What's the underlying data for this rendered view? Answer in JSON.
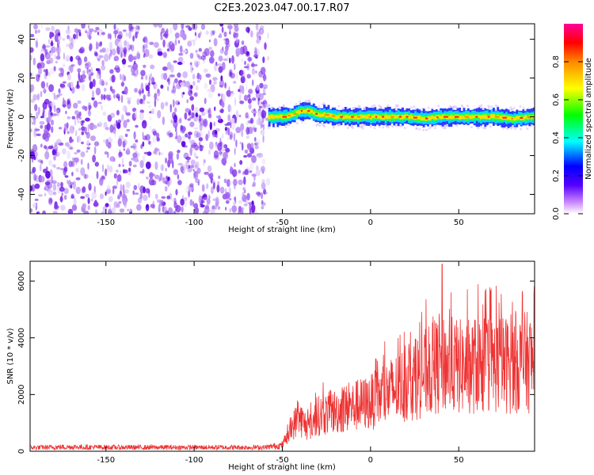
{
  "title": "C2E3.2023.047.00.17.R07",
  "colors": {
    "snr_line": "#ee3333",
    "noise": "#7a2be6",
    "axis": "#000000"
  },
  "chart_data": [
    {
      "type": "heatmap",
      "xlabel": "Height of straight line (km)",
      "ylabel": "Frequency (Hz)",
      "xlim": [
        -193,
        93
      ],
      "ylim": [
        -50,
        48
      ],
      "x_ticks": [
        -150,
        -100,
        -50,
        0,
        50
      ],
      "y_ticks": [
        -40,
        -20,
        0,
        20,
        40
      ],
      "grid": false,
      "signal_onset_km": -58,
      "signal_trace": {
        "x": [
          -58,
          -50,
          -45,
          -40,
          -35,
          -30,
          -25,
          -20,
          -10,
          0,
          10,
          20,
          30,
          40,
          50,
          60,
          70,
          80,
          92
        ],
        "frequency": [
          0,
          0,
          1,
          3,
          3,
          1,
          1,
          0,
          0,
          0,
          0,
          0,
          -1,
          0,
          0,
          0,
          0,
          -1,
          0
        ]
      },
      "colorbar": {
        "label": "Normalized spectral amplitude",
        "range": [
          0,
          1
        ],
        "ticks": [
          0.0,
          0.2,
          0.4,
          0.6,
          0.8
        ]
      }
    },
    {
      "type": "line",
      "xlabel": "Height of straight line (km)",
      "ylabel": "SNR (10 * v/v)",
      "xlim": [
        -193,
        93
      ],
      "ylim": [
        0,
        6700
      ],
      "x_ticks": [
        -150,
        -100,
        -50,
        0,
        50
      ],
      "y_ticks": [
        0,
        2000,
        4000,
        6000
      ],
      "grid": false,
      "series": [
        {
          "envelope_x": [
            -193,
            -170,
            -160,
            -140,
            -100,
            -60,
            -50,
            -48,
            -46,
            -44,
            -42,
            -40,
            -38,
            -35,
            -30,
            -25,
            -20,
            -15,
            -10,
            -5,
            0,
            5,
            10,
            15,
            20,
            25,
            30,
            35,
            40,
            45,
            50,
            55,
            60,
            65,
            70,
            75,
            80,
            85,
            93
          ],
          "envelope_y": [
            150,
            180,
            170,
            160,
            160,
            160,
            250,
            500,
            700,
            1100,
            1300,
            1400,
            1200,
            1000,
            1500,
            1600,
            1700,
            1800,
            1900,
            2000,
            2100,
            2300,
            2500,
            2700,
            2900,
            3100,
            3300,
            3500,
            3700,
            3700,
            3600,
            3600,
            3700,
            3700,
            3700,
            3700,
            3700,
            3800,
            3800
          ],
          "peak_y": 6600
        }
      ]
    }
  ]
}
